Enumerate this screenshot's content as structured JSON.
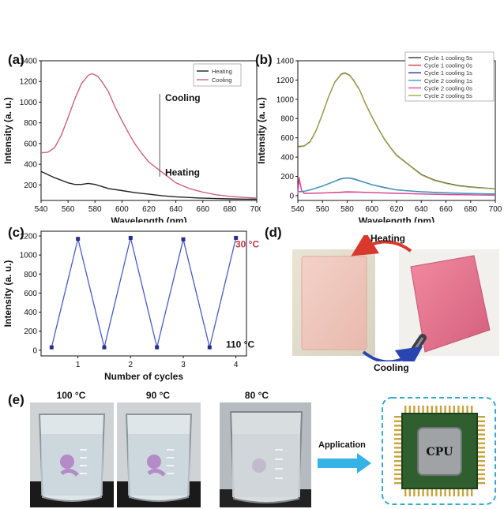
{
  "panels": {
    "a": "(a)",
    "b": "(b)",
    "c": "(c)",
    "d": "(d)",
    "e": "(e)"
  },
  "colors": {
    "heating": "#222222",
    "cooling": "#c9637a",
    "cycle_line": "#4a5bc4",
    "cycle_marker": "#2a2f8a",
    "hot_label": "#c0394b",
    "arrow_red": "#d9382d",
    "arrow_blue": "#2b45b0",
    "app_arrow": "#35b3e6"
  },
  "chart_data": [
    {
      "type": "line",
      "xlabel": "Wavelength (nm)",
      "ylabel": "Intensity (a. u.)",
      "xlim": [
        540,
        700
      ],
      "ylim": [
        50,
        1400
      ],
      "xticks": [
        540,
        560,
        580,
        600,
        620,
        640,
        660,
        680,
        700
      ],
      "yticks": [
        200,
        400,
        600,
        800,
        1000,
        1200,
        1400
      ],
      "legend_position": "top-right",
      "series": [
        {
          "name": "Heating",
          "color_key": "heating",
          "x": [
            540,
            545,
            550,
            555,
            560,
            565,
            570,
            575,
            580,
            585,
            590,
            600,
            610,
            620,
            630,
            640,
            650,
            660,
            670,
            680,
            690,
            700
          ],
          "y": [
            330,
            300,
            270,
            245,
            220,
            205,
            205,
            215,
            205,
            185,
            165,
            145,
            125,
            110,
            95,
            85,
            78,
            72,
            68,
            65,
            63,
            62
          ]
        },
        {
          "name": "Cooling",
          "color_key": "cooling",
          "x": [
            540,
            545,
            550,
            555,
            560,
            565,
            570,
            575,
            578,
            582,
            585,
            590,
            595,
            600,
            605,
            610,
            615,
            620,
            630,
            640,
            650,
            660,
            670,
            680,
            690,
            700
          ],
          "y": [
            510,
            515,
            560,
            680,
            850,
            1030,
            1180,
            1260,
            1275,
            1250,
            1200,
            1100,
            950,
            820,
            700,
            590,
            500,
            420,
            320,
            220,
            165,
            130,
            105,
            90,
            80,
            72
          ]
        }
      ],
      "annotations": [
        "Cooling",
        "Heating"
      ]
    },
    {
      "type": "line",
      "xlabel": "Wavelength (nm)",
      "ylabel": "Intensity (a. u.)",
      "xlim": [
        540,
        700
      ],
      "ylim": [
        -50,
        1400
      ],
      "xticks": [
        540,
        560,
        580,
        600,
        620,
        640,
        660,
        680,
        700
      ],
      "yticks": [
        0,
        200,
        400,
        600,
        800,
        1000,
        1200,
        1400
      ],
      "legend_position": "top-right",
      "series": [
        {
          "name": "Cycle 1 cooling 5s",
          "color": "#3a3a3a",
          "x": [
            540,
            545,
            550,
            555,
            560,
            565,
            570,
            575,
            578,
            582,
            585,
            590,
            595,
            600,
            605,
            610,
            615,
            620,
            630,
            640,
            650,
            660,
            670,
            680,
            690,
            700
          ],
          "y": [
            510,
            515,
            560,
            680,
            850,
            1030,
            1180,
            1260,
            1275,
            1250,
            1200,
            1100,
            950,
            820,
            700,
            590,
            500,
            420,
            320,
            220,
            165,
            130,
            105,
            90,
            80,
            72
          ]
        },
        {
          "name": "Cycle 1 cooling 0s",
          "color": "#d43a4a",
          "x": [
            540,
            541,
            543,
            545,
            550,
            560,
            570,
            580,
            590,
            600,
            620,
            640,
            660,
            680,
            700
          ],
          "y": [
            20,
            190,
            60,
            25,
            25,
            28,
            33,
            40,
            38,
            32,
            25,
            18,
            12,
            8,
            5
          ]
        },
        {
          "name": "Cycle 1 cooling 1s",
          "color": "#2a3a8a",
          "x": [
            540,
            545,
            550,
            560,
            570,
            575,
            580,
            585,
            590,
            600,
            610,
            620,
            640,
            660,
            680,
            700
          ],
          "y": [
            40,
            45,
            60,
            100,
            150,
            175,
            185,
            175,
            155,
            115,
            85,
            60,
            40,
            30,
            22,
            18
          ]
        },
        {
          "name": "Cycle 2 cooling 1s",
          "color": "#3aa0c0",
          "x": [
            540,
            545,
            550,
            560,
            570,
            575,
            580,
            585,
            590,
            600,
            610,
            620,
            640,
            660,
            680,
            700
          ],
          "y": [
            38,
            43,
            58,
            98,
            148,
            172,
            182,
            172,
            152,
            112,
            82,
            58,
            38,
            28,
            20,
            16
          ]
        },
        {
          "name": "Cycle 2 cooling 0s",
          "color": "#d44aa8",
          "x": [
            540,
            541,
            543,
            545,
            550,
            560,
            570,
            580,
            590,
            600,
            620,
            640,
            660,
            680,
            700
          ],
          "y": [
            18,
            170,
            55,
            22,
            23,
            26,
            30,
            36,
            35,
            30,
            23,
            16,
            10,
            7,
            4
          ]
        },
        {
          "name": "Cycle 2 cooling 5s",
          "color": "#a8a848",
          "x": [
            540,
            545,
            550,
            555,
            560,
            565,
            570,
            575,
            578,
            582,
            585,
            590,
            595,
            600,
            605,
            610,
            615,
            620,
            630,
            640,
            650,
            660,
            670,
            680,
            690,
            700
          ],
          "y": [
            505,
            512,
            555,
            675,
            845,
            1025,
            1175,
            1255,
            1270,
            1245,
            1195,
            1095,
            945,
            815,
            695,
            585,
            495,
            415,
            315,
            215,
            160,
            125,
            100,
            86,
            77,
            70
          ]
        }
      ]
    },
    {
      "type": "line",
      "xlabel": "Number of cycles",
      "ylabel": "Intensity (a. u.)",
      "xlim": [
        0.3,
        4.2
      ],
      "ylim": [
        -60,
        1250
      ],
      "xticks": [
        1,
        2,
        3,
        4
      ],
      "yticks": [
        0,
        200,
        400,
        600,
        800,
        1000,
        1200
      ],
      "x": [
        0.5,
        1,
        1.5,
        2,
        2.5,
        3,
        3.5,
        4
      ],
      "y": [
        30,
        1170,
        30,
        1180,
        30,
        1165,
        30,
        1180
      ],
      "annotations": [
        "30 °C",
        "110 °C"
      ]
    }
  ],
  "panel_d": {
    "heating_label": "Heating",
    "cooling_label": "Cooling"
  },
  "panel_e": {
    "temps": [
      "100 °C",
      "90 °C",
      "80 °C"
    ],
    "application_label": "Application",
    "cpu_label": "CPU"
  }
}
